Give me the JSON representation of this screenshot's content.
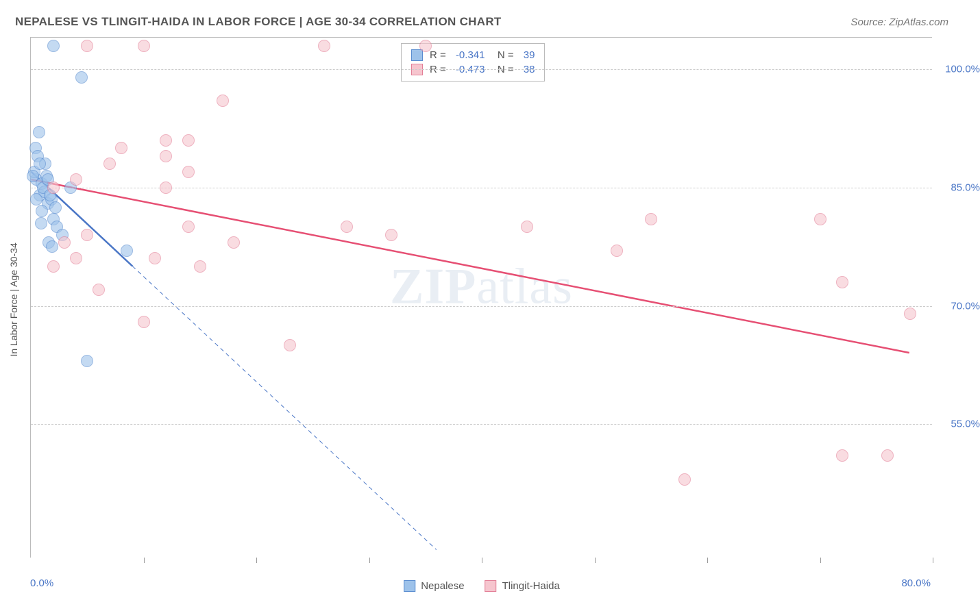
{
  "title": "NEPALESE VS TLINGIT-HAIDA IN LABOR FORCE | AGE 30-34 CORRELATION CHART",
  "source": "Source: ZipAtlas.com",
  "y_label": "In Labor Force | Age 30-34",
  "watermark_a": "ZIP",
  "watermark_b": "atlas",
  "chart": {
    "type": "scatter",
    "xlim": [
      0,
      80
    ],
    "ylim": [
      38,
      104
    ],
    "x_ticks": [
      0,
      10,
      20,
      30,
      40,
      50,
      60,
      70,
      80
    ],
    "y_gridlines": [
      55,
      70,
      85,
      100
    ],
    "x_min_label": "0.0%",
    "x_max_label": "80.0%",
    "y_tick_labels": {
      "55": "55.0%",
      "70": "70.0%",
      "85": "85.0%",
      "100": "100.0%"
    },
    "grid_color": "#cccccc",
    "background_color": "#ffffff",
    "marker_radius": 9,
    "marker_opacity": 0.6,
    "series": [
      {
        "name": "Nepalese",
        "fill": "#9dc2ea",
        "stroke": "#5a8dd0",
        "r_value": "-0.341",
        "n_value": "39",
        "trend": {
          "solid": [
            [
              0,
              87
            ],
            [
              9,
              75
            ]
          ],
          "dashed": [
            [
              9,
              75
            ],
            [
              36,
              39
            ]
          ],
          "color": "#4a76c6",
          "width": 2.5
        },
        "points": [
          [
            0.5,
            86
          ],
          [
            0.8,
            84
          ],
          [
            1.0,
            85.5
          ],
          [
            1.2,
            84.5
          ],
          [
            0.3,
            87
          ],
          [
            1.5,
            83
          ],
          [
            1.0,
            82
          ],
          [
            1.8,
            83.5
          ],
          [
            0.4,
            90
          ],
          [
            0.6,
            89
          ],
          [
            0.2,
            86.5
          ],
          [
            1.3,
            88
          ],
          [
            0.7,
            92
          ],
          [
            2.0,
            81
          ],
          [
            2.3,
            80
          ],
          [
            2.8,
            79
          ],
          [
            1.6,
            78
          ],
          [
            1.9,
            77.5
          ],
          [
            0.9,
            80.5
          ],
          [
            3.5,
            85
          ],
          [
            1.4,
            86.5
          ],
          [
            0.5,
            83.5
          ],
          [
            8.5,
            77
          ],
          [
            5.0,
            63
          ],
          [
            2.0,
            103
          ],
          [
            4.5,
            99
          ],
          [
            1.1,
            85
          ],
          [
            1.7,
            84
          ],
          [
            2.2,
            82.5
          ],
          [
            0.8,
            88
          ],
          [
            1.5,
            86
          ]
        ]
      },
      {
        "name": "Tlingit-Haida",
        "fill": "#f6c5ce",
        "stroke": "#e37f97",
        "r_value": "-0.473",
        "n_value": "38",
        "trend": {
          "solid": [
            [
              0,
              86
            ],
            [
              78,
              64
            ]
          ],
          "color": "#e64f73",
          "width": 2.5
        },
        "points": [
          [
            5,
            103
          ],
          [
            10,
            103
          ],
          [
            26,
            103
          ],
          [
            35,
            103
          ],
          [
            17,
            96
          ],
          [
            12,
            91
          ],
          [
            14,
            91
          ],
          [
            8,
            90
          ],
          [
            12,
            89
          ],
          [
            7,
            88
          ],
          [
            14,
            87
          ],
          [
            4,
            86
          ],
          [
            2,
            85
          ],
          [
            12,
            85
          ],
          [
            14,
            80
          ],
          [
            5,
            79
          ],
          [
            4,
            76
          ],
          [
            11,
            76
          ],
          [
            28,
            80
          ],
          [
            32,
            79
          ],
          [
            23,
            65
          ],
          [
            10,
            68
          ],
          [
            6,
            72
          ],
          [
            2,
            75
          ],
          [
            44,
            80
          ],
          [
            52,
            77
          ],
          [
            55,
            81
          ],
          [
            70,
            81
          ],
          [
            72,
            73
          ],
          [
            78,
            69
          ],
          [
            58,
            48
          ],
          [
            72,
            51
          ],
          [
            76,
            51
          ],
          [
            15,
            75
          ],
          [
            18,
            78
          ],
          [
            3,
            78
          ]
        ]
      }
    ]
  },
  "legend_bottom": [
    {
      "label": "Nepalese",
      "fill": "#9dc2ea",
      "stroke": "#5a8dd0"
    },
    {
      "label": "Tlingit-Haida",
      "fill": "#f6c5ce",
      "stroke": "#e37f97"
    }
  ]
}
